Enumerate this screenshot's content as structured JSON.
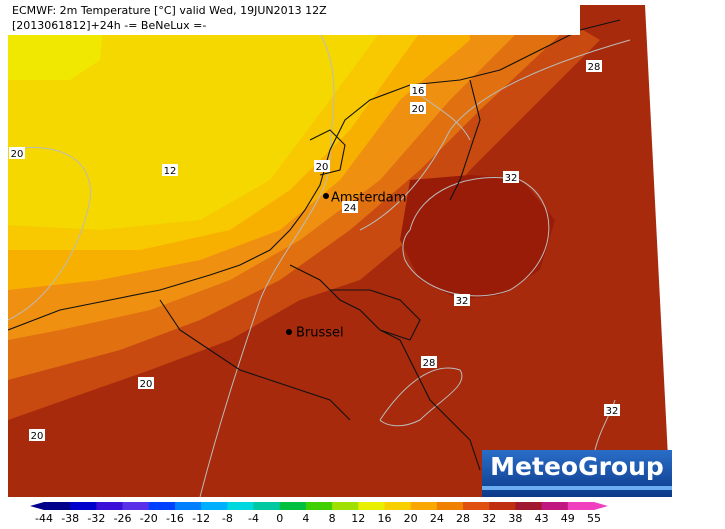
{
  "header": {
    "line1": "ECMWF: 2m Temperature [°C] valid Wed, 19JUN2013 12Z",
    "line2": "[2013061812]+24h  -= BeNeLux =-"
  },
  "cities": [
    "Amsterdam",
    "Brussel"
  ],
  "contour_labels": [
    16,
    20,
    28,
    20,
    12,
    20,
    32,
    24,
    32,
    28,
    20,
    32,
    20
  ],
  "logo": "MeteoGroup",
  "colorbar": {
    "ticks": [
      -44,
      -38,
      -32,
      -26,
      -20,
      -16,
      -12,
      -8,
      -4,
      0,
      4,
      8,
      12,
      16,
      20,
      24,
      28,
      32,
      38,
      43,
      49,
      55
    ],
    "colors": [
      "#00008b",
      "#0000cd",
      "#3a10d8",
      "#5a30e8",
      "#0040ff",
      "#0080ff",
      "#00b0ff",
      "#00d8e0",
      "#00c8a0",
      "#00c040",
      "#40d000",
      "#a0e000",
      "#e8f000",
      "#f8d000",
      "#f8a800",
      "#f08000",
      "#e05010",
      "#c03010",
      "#a01830",
      "#c01880",
      "#f040c0"
    ]
  }
}
